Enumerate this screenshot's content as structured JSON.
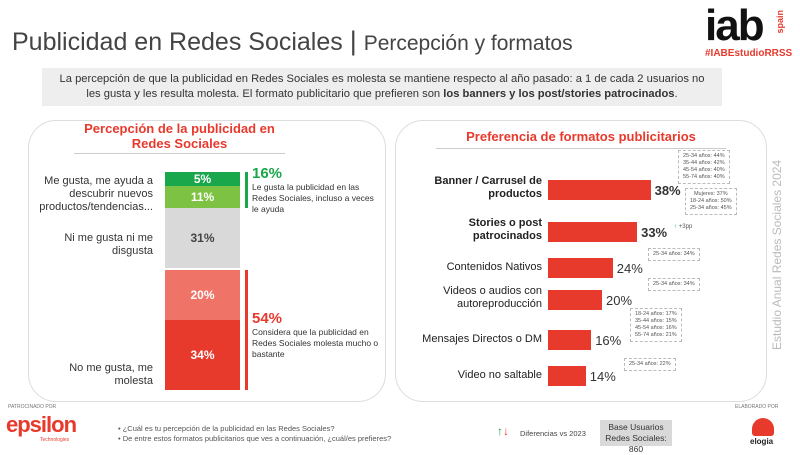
{
  "header": {
    "title": "Publicidad en Redes Sociales",
    "separator": "|",
    "subtitle": "Percepción y formatos",
    "logo": "iab",
    "logo_suffix": "spain",
    "hashtag": "#IABEstudioRRSS"
  },
  "intro": {
    "text": "La percepción de que la publicidad en Redes Sociales es molesta se mantiene respecto al año pasado: a 1 de cada 2 usuarios no les gusta y  les resulta molesta. El formato publicitario que prefieren son ",
    "bold": "los banners y los post/stories patrocinados",
    "end": "."
  },
  "left": {
    "title": "Percepción de la publicidad en Redes Sociales",
    "segments": [
      {
        "value": "5%",
        "color": "#1aa64a"
      },
      {
        "value": "11%",
        "color": "#7dc242"
      },
      {
        "value": "31%",
        "color": "#d9d9d9"
      },
      {
        "value": "20%",
        "color": "#f07368"
      },
      {
        "value": "34%",
        "color": "#e8392d"
      }
    ],
    "labels": [
      "Me gusta, me ayuda a descubrir nuevos productos/tendencias...",
      "Ni me gusta ni me disgusta",
      "No me gusta, me molesta"
    ],
    "positive": {
      "pct": "16%",
      "text": "Le gusta la publicidad en las Redes Sociales, incluso a veces le ayuda"
    },
    "negative": {
      "pct": "54%",
      "text": "Considera que la publicidad en Redes Sociales molesta mucho o bastante"
    }
  },
  "right": {
    "title": "Preferencia de formatos publicitarios",
    "items": [
      {
        "label": "Banner / Carrusel de productos",
        "value": 38,
        "text": "38%",
        "bold": true,
        "note": [
          "25-34 años: 44%",
          "35-44 años: 42%",
          "45-54 años: 40%",
          "55-74 años: 40%"
        ]
      },
      {
        "label": "Stories o post patrocinados",
        "value": 33,
        "text": "33%",
        "bold": true,
        "change": "+3pp",
        "note": [
          "Mujeres: 37%",
          "18-24 años: 50%",
          "25-34 años: 45%"
        ]
      },
      {
        "label": "Contenidos Nativos",
        "value": 24,
        "text": "24%",
        "note": [
          "25-34 años: 34%"
        ]
      },
      {
        "label": "Videos o audios con autoreproducción",
        "value": 20,
        "text": "20%",
        "note": [
          "25-34 años: 34%"
        ]
      },
      {
        "label": "Mensajes Directos o DM",
        "value": 16,
        "text": "16%",
        "note": [
          "18-24 años: 17%",
          "35-44 años: 15%",
          "45-54 años: 16%",
          "55-74 años: 21%"
        ]
      },
      {
        "label": "Video no saltable",
        "value": 14,
        "text": "14%",
        "note": [
          "25-34 años: 22%"
        ]
      }
    ]
  },
  "side": "Estudio Anual Redes Sociales 2024",
  "footer": {
    "sponsor_label": "PATROCINADO POR",
    "sponsor": "epsilon",
    "sponsor_sub": "Technologies",
    "questions": [
      "¿Cuál es tu percepción de la publicidad en las Redes Sociales?",
      "De entre estos formatos publicitarios que ves a continuación, ¿cuál/es prefieres?"
    ],
    "diff_label": "Diferencias vs 2023",
    "base": "Base Usuarios Redes Sociales: 860",
    "made_label": "ELABORADO POR",
    "maker": "elogia"
  }
}
